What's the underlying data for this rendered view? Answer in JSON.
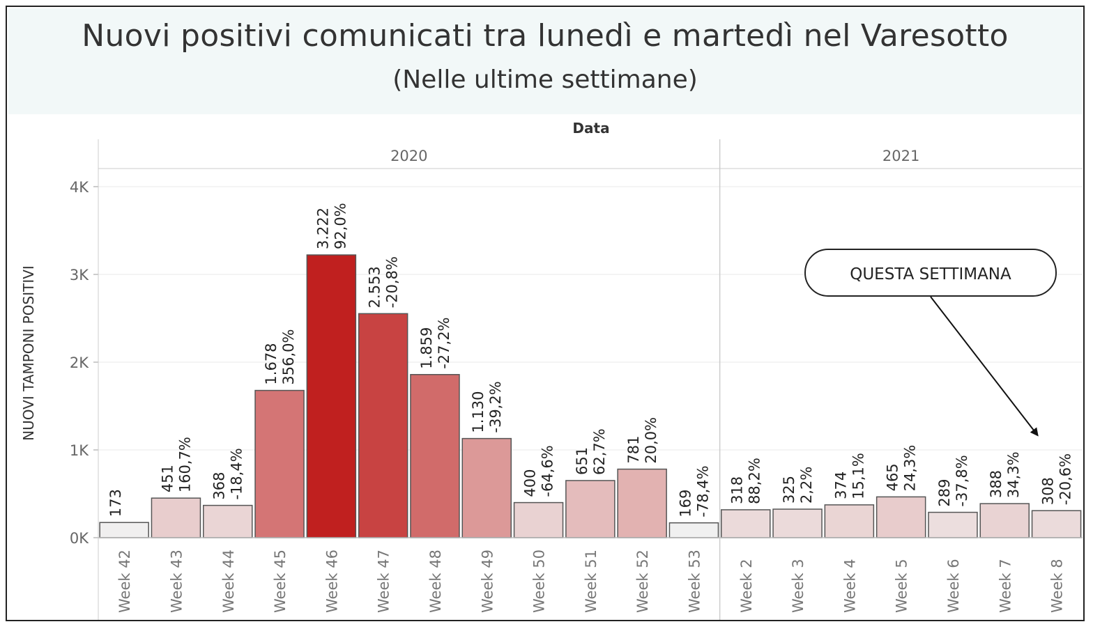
{
  "header": {
    "title": "Nuovi positivi comunicati tra lunedì e martedì nel Varesotto",
    "subtitle": "(Nelle ultime settimane)"
  },
  "colors": {
    "header_bg": "#f2f8f8",
    "bar_stroke": "#555555",
    "grid": "#e8e8e8",
    "scale_min": "#f0f0f0",
    "scale_max": "#c0201f"
  },
  "chart_data": {
    "type": "bar",
    "column_header": "Data",
    "ylabel": "NUOVI TAMPONI POSITIVI",
    "ylim": [
      0,
      4000
    ],
    "yticks": [
      {
        "value": 0,
        "label": "0K"
      },
      {
        "value": 1000,
        "label": "1K"
      },
      {
        "value": 2000,
        "label": "2K"
      },
      {
        "value": 3000,
        "label": "3K"
      },
      {
        "value": 4000,
        "label": "4K"
      }
    ],
    "grid": true,
    "groups": [
      {
        "year": "2020",
        "categories": [
          "Week 42",
          "Week 43",
          "Week 44",
          "Week 45",
          "Week 46",
          "Week 47",
          "Week 48",
          "Week 49",
          "Week 50",
          "Week 51",
          "Week 52",
          "Week 53"
        ],
        "values": [
          173,
          451,
          368,
          1678,
          3222,
          2553,
          1859,
          1130,
          400,
          651,
          781,
          169
        ],
        "value_labels": [
          "173",
          "451",
          "368",
          "1.678",
          "3.222",
          "2.553",
          "1.859",
          "1.130",
          "400",
          "651",
          "781",
          "169"
        ],
        "pct_labels": [
          "",
          "160,7%",
          "-18,4%",
          "356,0%",
          "92,0%",
          "-20,8%",
          "-27,2%",
          "-39,2%",
          "-64,6%",
          "62,7%",
          "20,0%",
          "-78,4%"
        ]
      },
      {
        "year": "2021",
        "categories": [
          "Week 2",
          "Week 3",
          "Week 4",
          "Week 5",
          "Week 6",
          "Week 7",
          "Week 8"
        ],
        "values": [
          318,
          325,
          374,
          465,
          289,
          388,
          308
        ],
        "value_labels": [
          "318",
          "325",
          "374",
          "465",
          "289",
          "388",
          "308"
        ],
        "pct_labels": [
          "88,2%",
          "2,2%",
          "15,1%",
          "24,3%",
          "-37,8%",
          "34,3%",
          "-20,6%"
        ]
      }
    ],
    "annotation": {
      "text": "QUESTA SETTIMANA",
      "target": "Week 8"
    }
  }
}
